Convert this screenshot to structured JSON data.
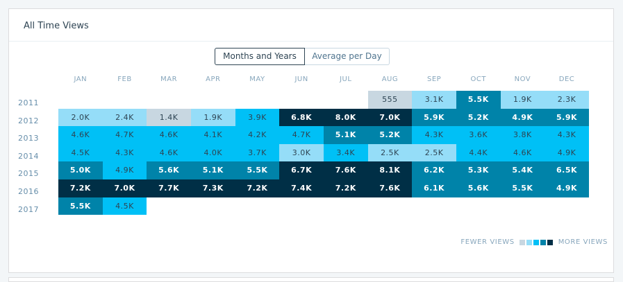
{
  "card": {
    "title": "All Time Views"
  },
  "toggle": {
    "months_years": "Months and Years",
    "average_per_day": "Average per Day"
  },
  "colors": {
    "level1": "#c8d7e1",
    "level2": "#95ddf8",
    "level3": "#00c0f6",
    "level4": "#0083a9",
    "level5": "#002f46"
  },
  "months": [
    "JAN",
    "FEB",
    "MAR",
    "APR",
    "MAY",
    "JUN",
    "JUL",
    "AUG",
    "SEP",
    "OCT",
    "NOV",
    "DEC"
  ],
  "years": [
    "2011",
    "2012",
    "2013",
    "2014",
    "2015",
    "2016",
    "2017"
  ],
  "grid": [
    [
      null,
      null,
      null,
      null,
      null,
      null,
      null,
      {
        "v": "555",
        "l": 1
      },
      {
        "v": "3.1K",
        "l": 2
      },
      {
        "v": "5.5K",
        "l": 4
      },
      {
        "v": "1.9K",
        "l": 2
      },
      {
        "v": "2.3K",
        "l": 2
      }
    ],
    [
      {
        "v": "2.0K",
        "l": 2
      },
      {
        "v": "2.4K",
        "l": 2
      },
      {
        "v": "1.4K",
        "l": 1
      },
      {
        "v": "1.9K",
        "l": 2
      },
      {
        "v": "3.9K",
        "l": 3
      },
      {
        "v": "6.8K",
        "l": 5
      },
      {
        "v": "8.0K",
        "l": 5
      },
      {
        "v": "7.0K",
        "l": 5
      },
      {
        "v": "5.9K",
        "l": 4
      },
      {
        "v": "5.2K",
        "l": 4
      },
      {
        "v": "4.9K",
        "l": 4
      },
      {
        "v": "5.9K",
        "l": 4
      }
    ],
    [
      {
        "v": "4.6K",
        "l": 3
      },
      {
        "v": "4.7K",
        "l": 3
      },
      {
        "v": "4.6K",
        "l": 3
      },
      {
        "v": "4.1K",
        "l": 3
      },
      {
        "v": "4.2K",
        "l": 3
      },
      {
        "v": "4.7K",
        "l": 3
      },
      {
        "v": "5.1K",
        "l": 4
      },
      {
        "v": "5.2K",
        "l": 4
      },
      {
        "v": "4.3K",
        "l": 3
      },
      {
        "v": "3.6K",
        "l": 3
      },
      {
        "v": "3.8K",
        "l": 3
      },
      {
        "v": "4.3K",
        "l": 3
      }
    ],
    [
      {
        "v": "4.5K",
        "l": 3
      },
      {
        "v": "4.3K",
        "l": 3
      },
      {
        "v": "4.6K",
        "l": 3
      },
      {
        "v": "4.0K",
        "l": 3
      },
      {
        "v": "3.7K",
        "l": 3
      },
      {
        "v": "3.0K",
        "l": 2
      },
      {
        "v": "3.4K",
        "l": 3
      },
      {
        "v": "2.5K",
        "l": 2
      },
      {
        "v": "2.5K",
        "l": 2
      },
      {
        "v": "4.4K",
        "l": 3
      },
      {
        "v": "4.6K",
        "l": 3
      },
      {
        "v": "4.9K",
        "l": 3
      }
    ],
    [
      {
        "v": "5.0K",
        "l": 4
      },
      {
        "v": "4.9K",
        "l": 3
      },
      {
        "v": "5.6K",
        "l": 4
      },
      {
        "v": "5.1K",
        "l": 4
      },
      {
        "v": "5.5K",
        "l": 4
      },
      {
        "v": "6.7K",
        "l": 5
      },
      {
        "v": "7.6K",
        "l": 5
      },
      {
        "v": "8.1K",
        "l": 5
      },
      {
        "v": "6.2K",
        "l": 4
      },
      {
        "v": "5.3K",
        "l": 4
      },
      {
        "v": "5.4K",
        "l": 4
      },
      {
        "v": "6.5K",
        "l": 4
      }
    ],
    [
      {
        "v": "7.2K",
        "l": 5
      },
      {
        "v": "7.0K",
        "l": 5
      },
      {
        "v": "7.7K",
        "l": 5
      },
      {
        "v": "7.3K",
        "l": 5
      },
      {
        "v": "7.2K",
        "l": 5
      },
      {
        "v": "7.4K",
        "l": 5
      },
      {
        "v": "7.2K",
        "l": 5
      },
      {
        "v": "7.6K",
        "l": 5
      },
      {
        "v": "6.1K",
        "l": 4
      },
      {
        "v": "5.6K",
        "l": 4
      },
      {
        "v": "5.5K",
        "l": 4
      },
      {
        "v": "4.9K",
        "l": 4
      }
    ],
    [
      {
        "v": "5.5K",
        "l": 4
      },
      {
        "v": "4.5K",
        "l": 3
      },
      null,
      null,
      null,
      null,
      null,
      null,
      null,
      null,
      null,
      null
    ]
  ],
  "legend": {
    "fewer": "FEWER VIEWS",
    "more": "MORE VIEWS"
  }
}
